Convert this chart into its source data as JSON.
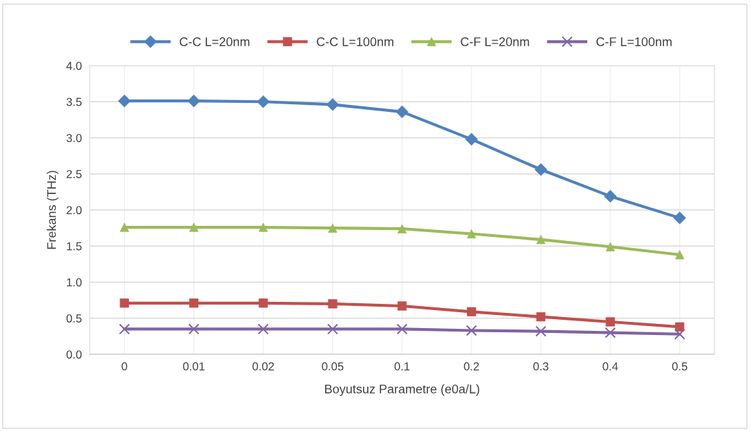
{
  "chart_data": {
    "type": "line",
    "xlabel": "Boyutsuz Parametre (e0a/L)",
    "ylabel": "Frekans (THz)",
    "categories": [
      "0",
      "0.01",
      "0.02",
      "0.05",
      "0.1",
      "0.2",
      "0.3",
      "0.4",
      "0.5"
    ],
    "series": [
      {
        "name": "C-C L=20nm",
        "color": "#4f81bd",
        "marker": "diamond",
        "values": [
          3.51,
          3.51,
          3.5,
          3.46,
          3.36,
          2.98,
          2.56,
          2.19,
          1.89
        ]
      },
      {
        "name": "C-C L=100nm",
        "color": "#c0504d",
        "marker": "square",
        "values": [
          0.71,
          0.71,
          0.71,
          0.7,
          0.67,
          0.59,
          0.52,
          0.45,
          0.38
        ]
      },
      {
        "name": "C-F L=20nm",
        "color": "#9bbb59",
        "marker": "triangle",
        "values": [
          1.76,
          1.76,
          1.76,
          1.75,
          1.74,
          1.67,
          1.59,
          1.49,
          1.38
        ]
      },
      {
        "name": "C-F L=100nm",
        "color": "#8064a2",
        "marker": "cross",
        "values": [
          0.35,
          0.35,
          0.35,
          0.35,
          0.35,
          0.33,
          0.32,
          0.3,
          0.28
        ]
      }
    ],
    "ylim": [
      0,
      4
    ],
    "yticks": [
      {
        "value": 0,
        "label": "0.0"
      },
      {
        "value": 0.5,
        "label": "0.5"
      },
      {
        "value": 1,
        "label": "1.0"
      },
      {
        "value": 1.5,
        "label": "1.5"
      },
      {
        "value": 2,
        "label": "2.0"
      },
      {
        "value": 2.5,
        "label": "2.5"
      },
      {
        "value": 3,
        "label": "3.0"
      },
      {
        "value": 3.5,
        "label": "3.5"
      },
      {
        "value": 4,
        "label": "4.0"
      }
    ],
    "grid": true,
    "legend": "top",
    "line_style": "solid"
  }
}
